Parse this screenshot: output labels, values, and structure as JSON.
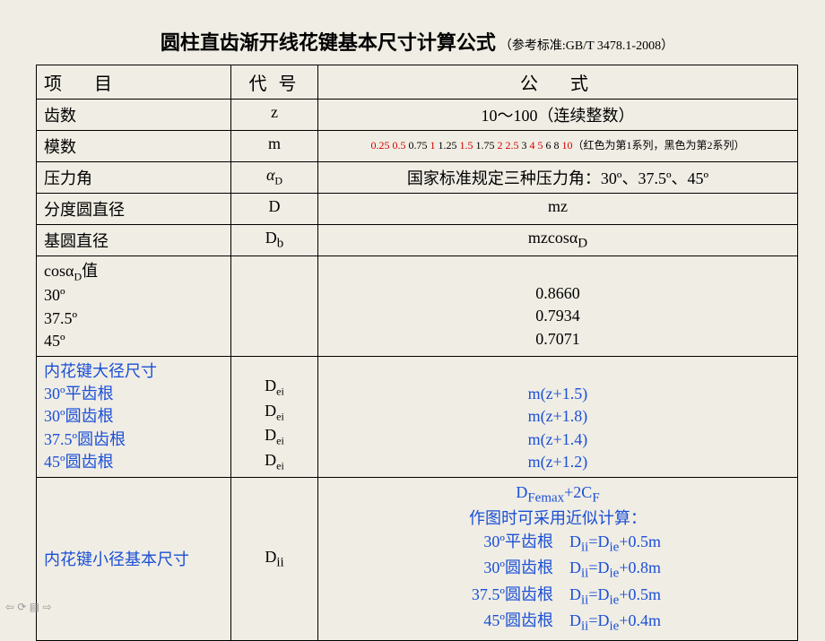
{
  "title_main": "圆柱直齿渐开线花键基本尺寸计算公式",
  "title_ref": "（参考标准:GB/T 3478.1-2008）",
  "headers": {
    "c1": "项　目",
    "c2": "代 号",
    "c3": "公　式"
  },
  "row_z": {
    "name": "齿数",
    "sym": "z",
    "formula": "10～100（连续整数）"
  },
  "row_m": {
    "name": "模数",
    "sym": "m",
    "vals": [
      {
        "t": "0.25",
        "r": 1
      },
      {
        "t": " 0.5",
        "r": 1
      },
      {
        "t": " 0.75",
        "r": 0
      },
      {
        "t": " 1",
        "r": 1
      },
      {
        "t": " 1.25",
        "r": 0
      },
      {
        "t": " 1.5",
        "r": 1
      },
      {
        "t": " 1.75",
        "r": 0
      },
      {
        "t": " 2",
        "r": 1
      },
      {
        "t": " 2.5",
        "r": 1
      },
      {
        "t": " 3",
        "r": 0
      },
      {
        "t": " 4",
        "r": 1
      },
      {
        "t": " 5",
        "r": 1
      },
      {
        "t": " 6",
        "r": 0
      },
      {
        "t": " 8",
        "r": 0
      },
      {
        "t": " 10",
        "r": 1
      }
    ],
    "note": "（红色为第1系列，黑色为第2系列）"
  },
  "row_alpha": {
    "name": "压力角",
    "sym_base": "α",
    "sym_sub": "D",
    "formula": "国家标准规定三种压力角：30º、37.5º、45º"
  },
  "row_D": {
    "name": "分度圆直径",
    "sym": "D",
    "formula": "mz"
  },
  "row_Db": {
    "name": "基圆直径",
    "sym_html": "D<sub>b</sub>",
    "formula_html": "mzcosα<sub>D</sub>"
  },
  "row_cos": {
    "c1": [
      "cosα",
      "D",
      "值",
      "30º",
      "37.5º",
      "45º"
    ],
    "c3": [
      "0.8660",
      "0.7934",
      "0.7071"
    ]
  },
  "row_Dei": {
    "title": "内花键大径尺寸",
    "lines": [
      "30º平齿根",
      "30º圆齿根",
      "37.5º圆齿根",
      "45º圆齿根"
    ],
    "syms": [
      "D",
      "ei",
      "D",
      "ei",
      "D",
      "ei",
      "D",
      "ei"
    ],
    "forms": [
      "m(z+1.5)",
      "m(z+1.8)",
      "m(z+1.4)",
      "m(z+1.2)"
    ]
  },
  "row_Dii": {
    "name": "内花键小径基本尺寸",
    "sym_html": "D<sub>ii</sub>",
    "top_html": "D<sub>Femax</sub>+2C<sub>F</sub>",
    "approx": "作图时可采用近似计算：",
    "lines": [
      {
        "l": "30º平齿根",
        "f": "D<sub>ii</sub>=D<sub>ie</sub>+0.5m"
      },
      {
        "l": "30º圆齿根",
        "f": "D<sub>ii</sub>=D<sub>ie</sub>+0.8m"
      },
      {
        "l": "37.5º圆齿根",
        "f": "D<sub>ii</sub>=D<sub>ie</sub>+0.5m"
      },
      {
        "l": "45º圆齿根",
        "f": "D<sub>ii</sub>=D<sub>ie</sub>+0.4m"
      }
    ]
  }
}
